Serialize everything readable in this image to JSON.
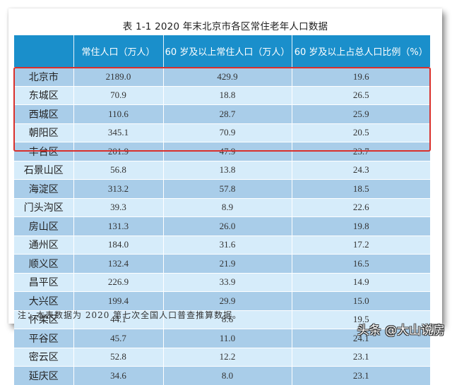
{
  "title": "表 1-1  2020 年末北京市各区常住老年人口数据",
  "columns": [
    "",
    "常住人口（万人）",
    "60 岁及以上常住人口（万人）",
    "60 岁及以上占总人口比例（%）"
  ],
  "rows": [
    {
      "name": "北京市",
      "pop": "2189.0",
      "elderly": "429.9",
      "ratio": "19.6"
    },
    {
      "name": "东城区",
      "pop": "70.9",
      "elderly": "18.8",
      "ratio": "26.5"
    },
    {
      "name": "西城区",
      "pop": "110.6",
      "elderly": "28.7",
      "ratio": "25.9"
    },
    {
      "name": "朝阳区",
      "pop": "345.1",
      "elderly": "70.9",
      "ratio": "20.5"
    },
    {
      "name": "丰台区",
      "pop": "201.9",
      "elderly": "47.9",
      "ratio": "23.7"
    },
    {
      "name": "石景山区",
      "pop": "56.8",
      "elderly": "13.8",
      "ratio": "24.3"
    },
    {
      "name": "海淀区",
      "pop": "313.2",
      "elderly": "57.8",
      "ratio": "18.5"
    },
    {
      "name": "门头沟区",
      "pop": "39.3",
      "elderly": "8.9",
      "ratio": "22.6"
    },
    {
      "name": "房山区",
      "pop": "131.3",
      "elderly": "26.0",
      "ratio": "19.8"
    },
    {
      "name": "通州区",
      "pop": "184.0",
      "elderly": "31.6",
      "ratio": "17.2"
    },
    {
      "name": "顺义区",
      "pop": "132.4",
      "elderly": "21.9",
      "ratio": "16.5"
    },
    {
      "name": "昌平区",
      "pop": "226.9",
      "elderly": "33.9",
      "ratio": "14.9"
    },
    {
      "name": "大兴区",
      "pop": "199.4",
      "elderly": "29.9",
      "ratio": "15.0"
    },
    {
      "name": "怀柔区",
      "pop": "44.1",
      "elderly": "8.6",
      "ratio": "19.5"
    },
    {
      "name": "平谷区",
      "pop": "45.7",
      "elderly": "11.0",
      "ratio": "24.1"
    },
    {
      "name": "密云区",
      "pop": "52.8",
      "elderly": "12.2",
      "ratio": "23.1"
    },
    {
      "name": "延庆区",
      "pop": "34.6",
      "elderly": "8.0",
      "ratio": "23.1"
    }
  ],
  "highlighted_rows": [
    "东城区",
    "西城区",
    "朝阳区",
    "丰台区",
    "石景山区"
  ],
  "note": "注：本表数据为 2020 第七次全国人口普查推算数据。",
  "watermark": "头条 @大山说房",
  "colors": {
    "header": "#1a8fcb",
    "row_dark": "#a9cde9",
    "row_light": "#d6ecfa",
    "highlight": "#d9302c"
  }
}
